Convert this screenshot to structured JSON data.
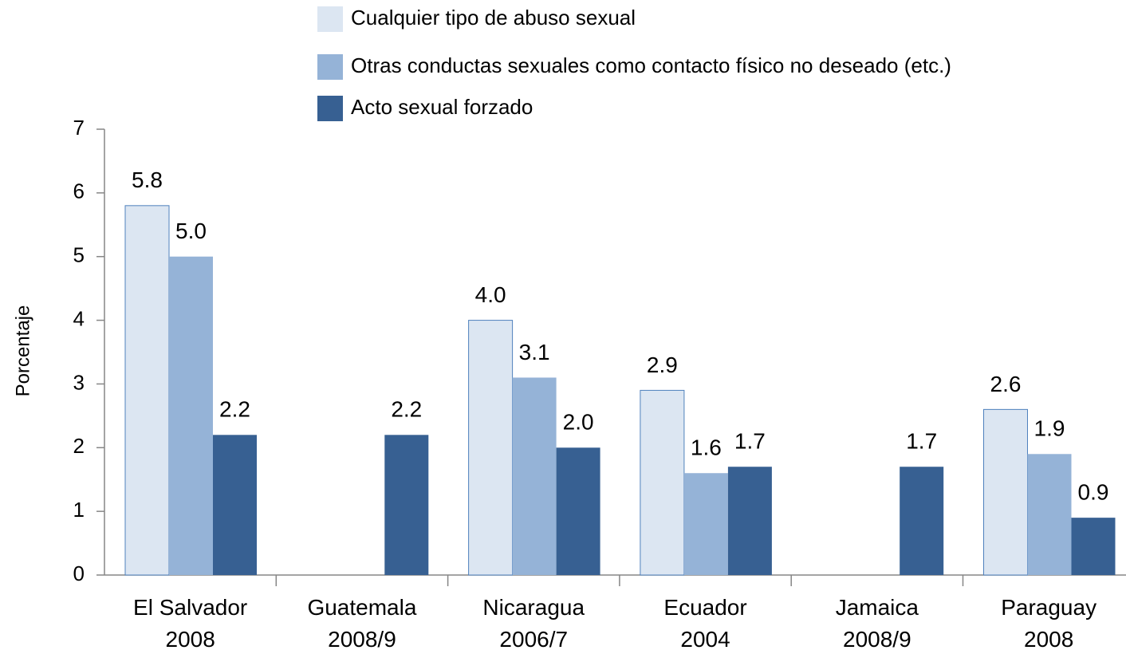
{
  "chart_data": {
    "type": "bar",
    "y_label": "Porcentaje",
    "categories": [
      [
        "El Salvador",
        "2008"
      ],
      [
        "Guatemala",
        "2008/9"
      ],
      [
        "Nicaragua",
        "2006/7"
      ],
      [
        "Ecuador",
        "2004"
      ],
      [
        "Jamaica",
        "2008/9"
      ],
      [
        "Paraguay",
        "2008"
      ]
    ],
    "series": [
      {
        "name": "Cualquier tipo de abuso sexual",
        "color": "#dce6f2",
        "values": [
          5.8,
          null,
          4.0,
          2.9,
          null,
          2.6
        ],
        "value_labels": [
          "5.8",
          null,
          "4.0",
          "2.9",
          null,
          "2.6"
        ]
      },
      {
        "name": "Otras conductas sexuales como contacto físico no deseado (etc.)",
        "color": "#95b3d7",
        "values": [
          5.0,
          null,
          3.1,
          1.6,
          null,
          1.9
        ],
        "value_labels": [
          "5.0",
          null,
          "3.1",
          "1.6",
          null,
          "1.9"
        ]
      },
      {
        "name": "Acto sexual forzado",
        "color": "#376092",
        "values": [
          2.2,
          2.2,
          2.0,
          1.7,
          1.7,
          0.9
        ],
        "value_labels": [
          "2.2",
          "2.2",
          "2.0",
          "1.7",
          "1.7",
          "0.9"
        ]
      }
    ],
    "ylim": [
      0,
      7
    ],
    "yticks": [
      0,
      1,
      2,
      3,
      4,
      5,
      6,
      7
    ],
    "grid": false,
    "legend": "top"
  }
}
